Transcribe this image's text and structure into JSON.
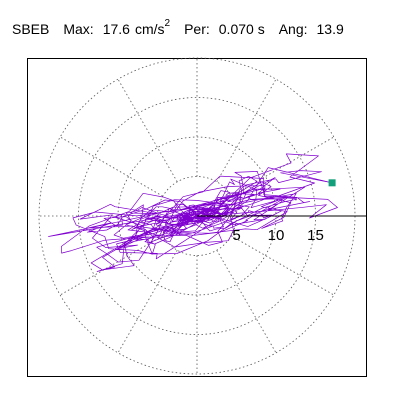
{
  "header": {
    "station": "SBEB",
    "max_label": "Max:",
    "max_value": "17.6",
    "max_unit": "cm/s",
    "max_unit_sup": "2",
    "per_label": "Per:",
    "per_value": "0.070 s",
    "ang_label": "Ang:",
    "ang_value": "13.9"
  },
  "chart_data": {
    "type": "polar-orbit",
    "title": "",
    "radial_ticks": [
      5,
      10,
      15
    ],
    "radial_tick_labels": [
      "5",
      "10",
      "15"
    ],
    "rmax": 20,
    "angular_divisions_deg": 30,
    "grid": true,
    "peak_marker": {
      "x": 17.1,
      "y": 4.2,
      "angle_deg": 13.9
    },
    "colors": {
      "trace": "#8000d0",
      "marker": "#12a07a",
      "grid": "#555555",
      "axis": "#000000"
    }
  }
}
